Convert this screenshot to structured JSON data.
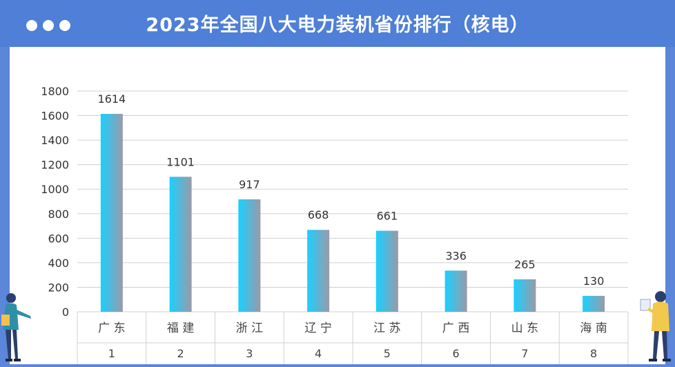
{
  "header": {
    "title": "2023年全国八大电力装机省份排行（核电）"
  },
  "colors": {
    "frame": "#5b86d9",
    "header": "#4f7fd6",
    "bar_start": "#1ad0ff",
    "bar_end": "#9a9aa8",
    "grid": "#d0d0d0"
  },
  "chart_data": {
    "type": "bar",
    "categories": [
      "广 东",
      "福 建",
      "浙 江",
      "辽 宁",
      "江 苏",
      "广 西",
      "山 东",
      "海 南"
    ],
    "ranks": [
      "1",
      "2",
      "3",
      "4",
      "5",
      "6",
      "7",
      "8"
    ],
    "values": [
      1614,
      1101,
      917,
      668,
      661,
      336,
      265,
      130
    ],
    "yticks": [
      0,
      200,
      400,
      600,
      800,
      1000,
      1200,
      1400,
      1600,
      1800
    ],
    "ylim": [
      0,
      1800
    ],
    "grid": true,
    "title": "2023年全国八大电力装机省份排行（核电）"
  }
}
